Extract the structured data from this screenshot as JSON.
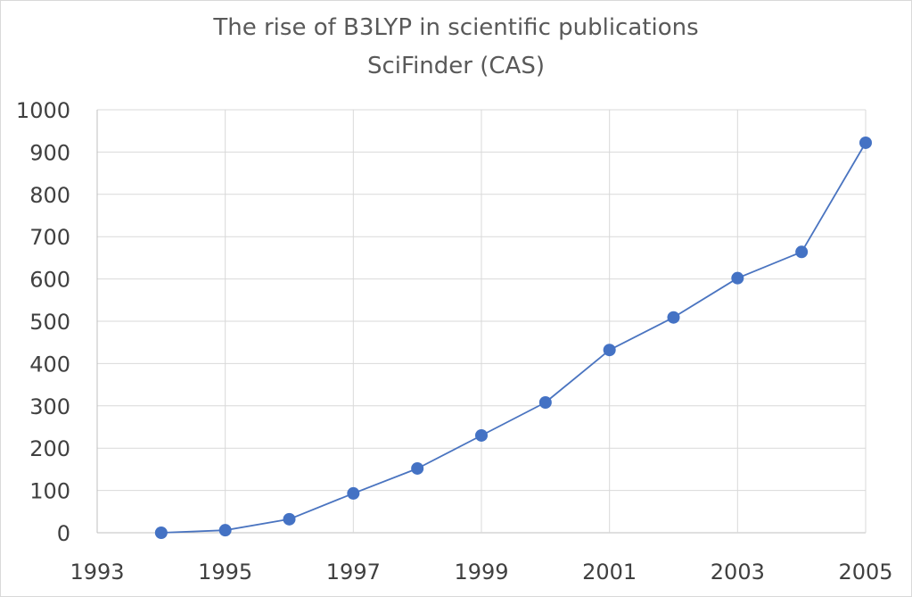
{
  "chart_data": {
    "type": "scatter",
    "title": "The rise of B3LYP in scientific publications",
    "subtitle": "SciFinder (CAS)",
    "xlabel": "",
    "ylabel": "",
    "xlim": [
      1993,
      2005
    ],
    "ylim": [
      0,
      1000
    ],
    "x_ticks": [
      "1993",
      "1995",
      "1997",
      "1999",
      "2001",
      "2003",
      "2005"
    ],
    "y_ticks": [
      "0",
      "100",
      "200",
      "300",
      "400",
      "500",
      "600",
      "700",
      "800",
      "900",
      "1000"
    ],
    "grid": true,
    "series": [
      {
        "x": [
          1994,
          1995,
          1996,
          1997,
          1998,
          1999,
          2000,
          2001,
          2002,
          2003,
          2004,
          2005
        ],
        "y": [
          0,
          6,
          32,
          93,
          152,
          230,
          308,
          432,
          509,
          602,
          664,
          922
        ],
        "color": "#4472C4",
        "line_color": "#4A74C0"
      }
    ]
  }
}
